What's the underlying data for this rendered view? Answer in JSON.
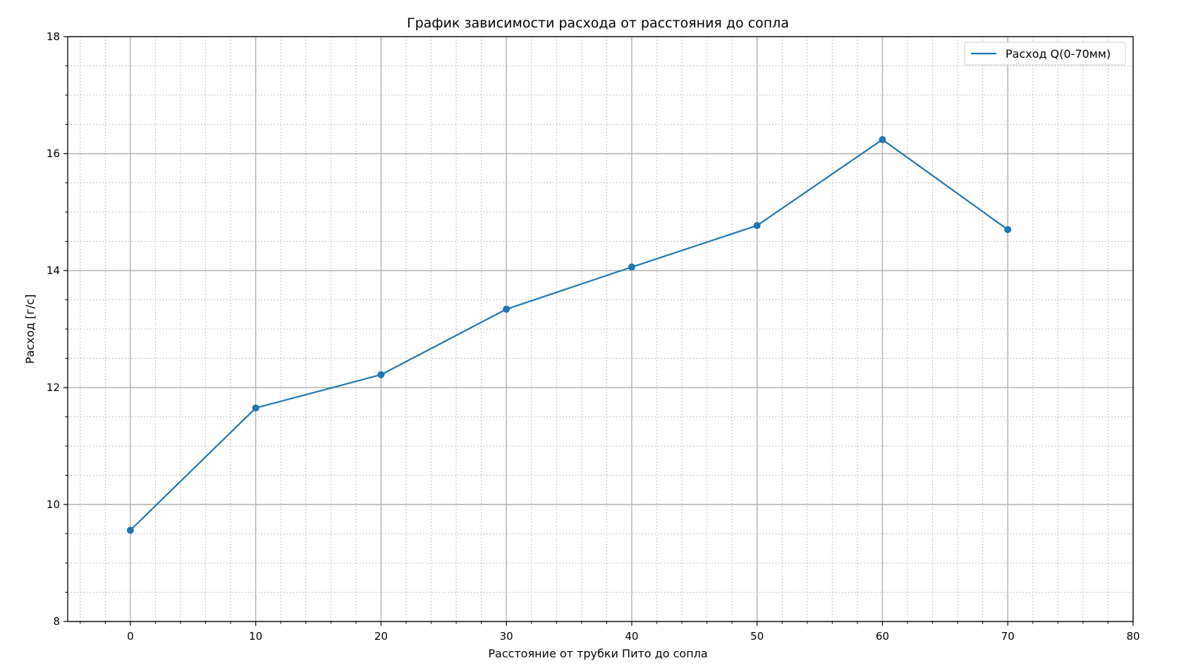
{
  "chart_data": {
    "type": "line",
    "title": "График зависимости расхода от расстояния до сопла",
    "xlabel": "Расстояние от трубки Пито до сопла",
    "ylabel": "Расход [г/с]",
    "xlim": [
      -5,
      80
    ],
    "ylim": [
      8,
      18
    ],
    "x_ticks": [
      0,
      10,
      20,
      30,
      40,
      50,
      60,
      70,
      80
    ],
    "y_ticks": [
      8,
      10,
      12,
      14,
      16,
      18
    ],
    "x_tick_labels": [
      "0",
      "10",
      "20",
      "30",
      "40",
      "50",
      "60",
      "70",
      "80"
    ],
    "y_tick_labels": [
      "8",
      "10",
      "12",
      "14",
      "16",
      "18"
    ],
    "x_minor_step": 2,
    "y_minor_step": 0.5,
    "grid": true,
    "minor_grid": true,
    "legend_position": "top-right",
    "series": [
      {
        "name": "Расход Q(0-70мм)",
        "color": "#1f77b4",
        "markers": true,
        "x": [
          0,
          10,
          20,
          30,
          40,
          50,
          60,
          70
        ],
        "y": [
          9.56,
          11.65,
          12.22,
          13.34,
          14.06,
          14.77,
          16.24,
          14.7
        ]
      }
    ]
  }
}
